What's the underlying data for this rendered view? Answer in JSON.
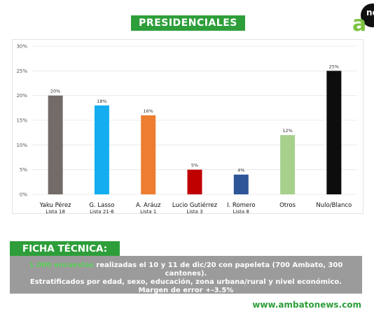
{
  "header": {
    "title": "PRESIDENCIALES"
  },
  "logo": {
    "letter": "a",
    "text": "ne"
  },
  "chart_data": {
    "type": "bar",
    "categories": [
      "Yaku Pérez",
      "G. Lasso",
      "A. Aráuz",
      "Lucio Gutiérrez",
      "I. Romero",
      "Otros",
      "Nulo/Blanco"
    ],
    "sublabels": [
      "Lista 18",
      "Lista 21-6",
      "Lista 1",
      "Lista 3",
      "Lista 8",
      "",
      ""
    ],
    "values": [
      20,
      18,
      16,
      5,
      4,
      12,
      25
    ],
    "data_labels": [
      "20%",
      "18%",
      "16%",
      "5%",
      "4%",
      "12%",
      "25%"
    ],
    "colors": [
      "#726b68",
      "#14adf0",
      "#ed7d31",
      "#c00000",
      "#2e5597",
      "#a8d08d",
      "#0d0d0d"
    ],
    "yticks": [
      "0%",
      "5%",
      "10%",
      "15%",
      "20%",
      "25%",
      "30%"
    ],
    "ylim": [
      0,
      30
    ],
    "grid": true
  },
  "ficha": {
    "title": "FICHA TÉCNICA:",
    "highlight": "1.000 encuestas",
    "line1": " realizadas el 10 y 11 de dic/20 con papeleta (700 Ambato, 300 cantones).",
    "line2": "Estratificados por edad, sexo, educación, zona urbana/rural y nivel económico.",
    "line3": "Margen de error +-3.5%"
  },
  "footer": {
    "website": "www.ambatonews.com"
  }
}
